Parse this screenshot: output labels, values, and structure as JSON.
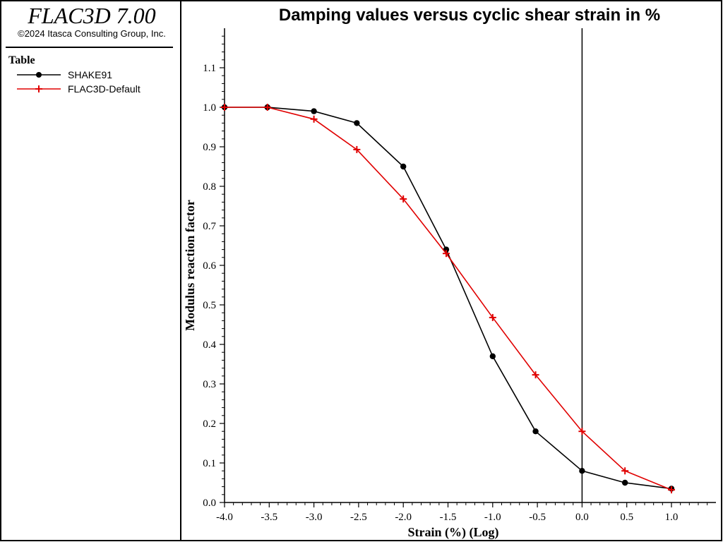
{
  "app": {
    "title": "FLAC3D 7.00",
    "copyright": "©2024 Itasca Consulting Group, Inc."
  },
  "legend": {
    "title": "Table",
    "items": [
      {
        "label": "SHAKE91",
        "color": "#000000",
        "marker": "circle"
      },
      {
        "label": "FLAC3D-Default",
        "color": "#e00000",
        "marker": "plus"
      }
    ]
  },
  "chart_data": {
    "type": "line",
    "title": "Damping values versus cyclic shear strain in %",
    "xlabel": "Strain (%) (Log)",
    "ylabel": "Modulus reaction factor",
    "xlim": [
      -4.0,
      1.5
    ],
    "ylim": [
      0.0,
      1.2
    ],
    "xticks": [
      "-4.0",
      "-3.5",
      "-3.0",
      "-2.5",
      "-2.0",
      "-1.5",
      "-1.0",
      "-0.5",
      "0.0",
      "0.5",
      "1.0"
    ],
    "xtick_values": [
      -4.0,
      -3.5,
      -3.0,
      -2.5,
      -2.0,
      -1.5,
      -1.0,
      -0.5,
      0.0,
      0.5,
      1.0
    ],
    "yticks": [
      "0.0",
      "0.1",
      "0.2",
      "0.3",
      "0.4",
      "0.5",
      "0.6",
      "0.7",
      "0.8",
      "0.9",
      "1.0",
      "1.1"
    ],
    "ytick_values": [
      0.0,
      0.1,
      0.2,
      0.3,
      0.4,
      0.5,
      0.6,
      0.7,
      0.8,
      0.9,
      1.0,
      1.1
    ],
    "reference_line_x": 0.0,
    "grid": false,
    "series": [
      {
        "name": "SHAKE91",
        "color": "#000000",
        "marker": "circle",
        "x": [
          -4.0,
          -3.52,
          -3.0,
          -2.52,
          -2.0,
          -1.52,
          -1.0,
          -0.52,
          0.0,
          0.48,
          1.0
        ],
        "y": [
          1.0,
          1.0,
          0.99,
          0.96,
          0.85,
          0.64,
          0.37,
          0.18,
          0.08,
          0.05,
          0.035
        ]
      },
      {
        "name": "FLAC3D-Default",
        "color": "#e00000",
        "marker": "plus",
        "x": [
          -4.0,
          -3.52,
          -3.0,
          -2.52,
          -2.0,
          -1.52,
          -1.0,
          -0.52,
          0.0,
          0.48,
          1.0
        ],
        "y": [
          1.0,
          1.0,
          0.97,
          0.893,
          0.768,
          0.63,
          0.468,
          0.323,
          0.18,
          0.08,
          0.032
        ]
      }
    ]
  }
}
